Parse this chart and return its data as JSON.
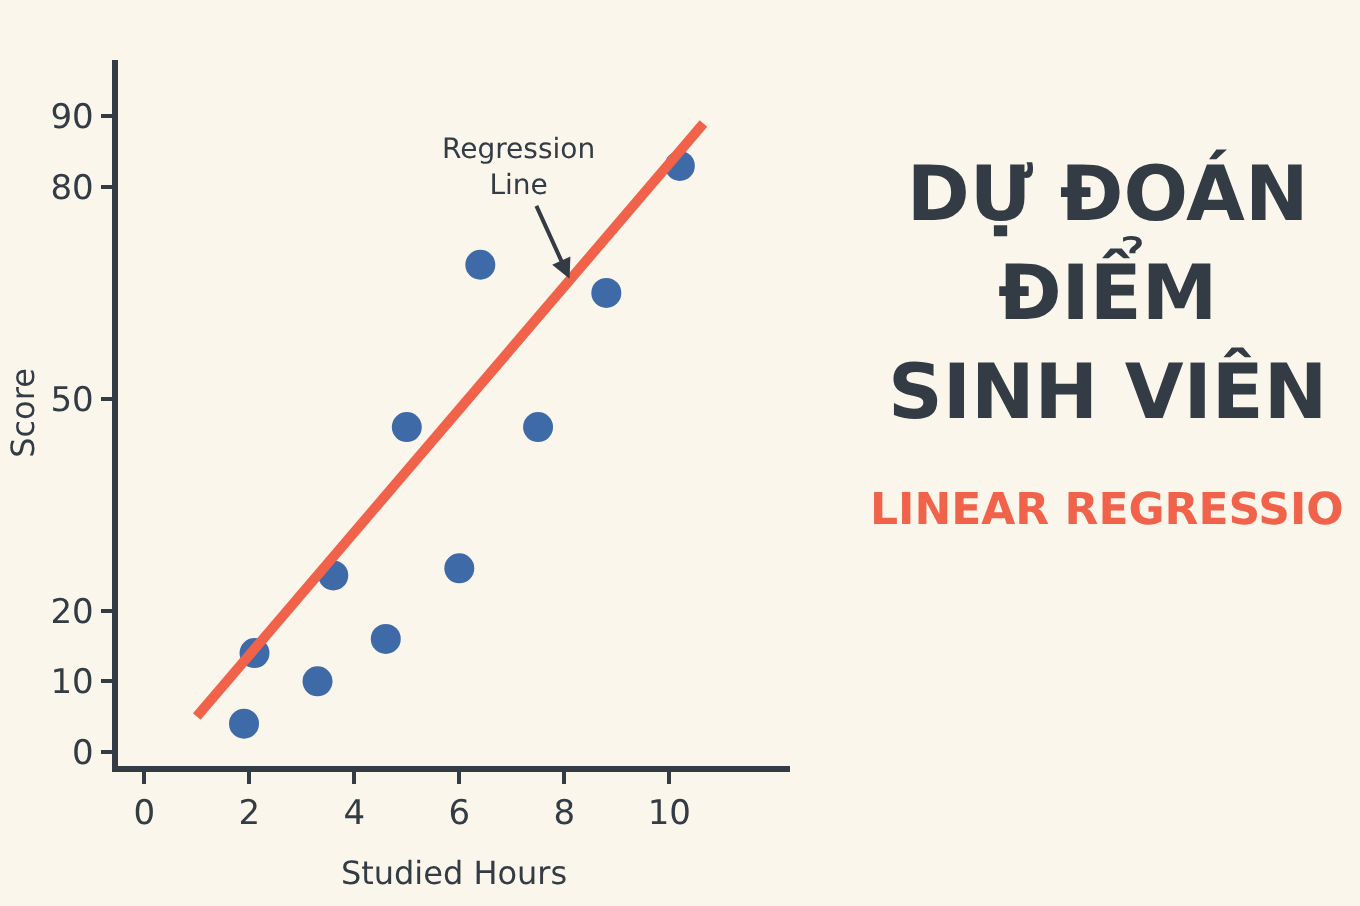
{
  "chart_data": {
    "type": "scatter",
    "title": "DỰ ĐOÁN\nĐIỂM\nSINH VIÊN",
    "subtitle": "LINEAR REGRESSIO",
    "xlabel": "Studied Hours",
    "ylabel": "Score",
    "series": [
      {
        "marker": "circle",
        "color": "#3f6aa8",
        "x": [
          1.9,
          2.1,
          3.3,
          3.6,
          4.6,
          5.0,
          6.0,
          6.4,
          7.5,
          8.8,
          10.2
        ],
        "values": [
          4,
          14,
          10,
          25,
          16,
          46,
          26,
          69,
          46,
          65,
          83
        ]
      },
      {
        "type": "line",
        "color": "#f0624a",
        "x": [
          1.0,
          10.65
        ],
        "values": [
          5,
          89
        ]
      }
    ],
    "annotations": [
      {
        "text": "Regression\nLine",
        "x": 8.1,
        "y": 67
      }
    ],
    "xlim": [
      -0.5,
      12.3
    ],
    "ylim": [
      -2,
      98
    ],
    "xticks": [
      0,
      2,
      4,
      6,
      8,
      10
    ],
    "yticks": [
      0,
      10,
      20,
      50,
      80,
      90
    ],
    "grid": false,
    "line_style": "solid"
  }
}
